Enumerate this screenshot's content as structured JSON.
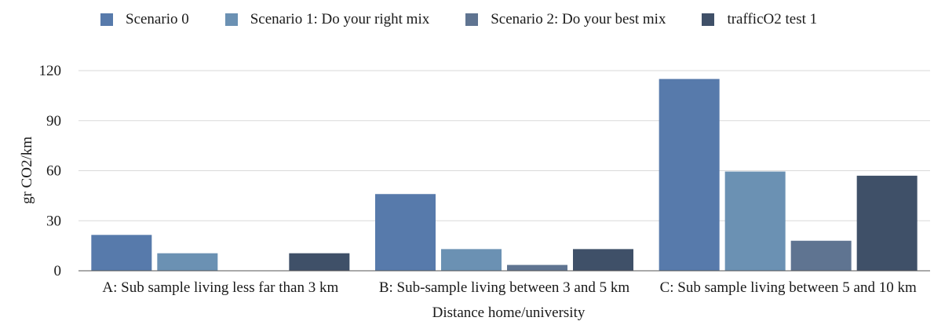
{
  "chart_data": {
    "type": "bar",
    "title": "",
    "xlabel": "Distance home/university",
    "ylabel": "gr CO2/km",
    "ylim": [
      0,
      120
    ],
    "yticks": [
      0,
      30,
      60,
      90,
      120
    ],
    "grid": true,
    "legend_position": "top",
    "categories": [
      "A: Sub sample living less far than 3 km",
      "B: Sub-sample living between 3 and 5 km",
      "C: Sub sample living between 5 and 10 km"
    ],
    "series": [
      {
        "name": "Scenario 0",
        "color": "#577aab",
        "values": [
          21.5,
          46,
          115
        ]
      },
      {
        "name": "Scenario 1: Do your right mix",
        "color": "#6b91b3",
        "values": [
          10.5,
          13,
          59.5
        ]
      },
      {
        "name": "Scenario 2: Do your best mix",
        "color": "#5f7491",
        "values": [
          0,
          3.5,
          18
        ]
      },
      {
        "name": "trafficO2 test 1",
        "color": "#3f5068",
        "values": [
          10.5,
          13,
          57
        ]
      }
    ]
  }
}
